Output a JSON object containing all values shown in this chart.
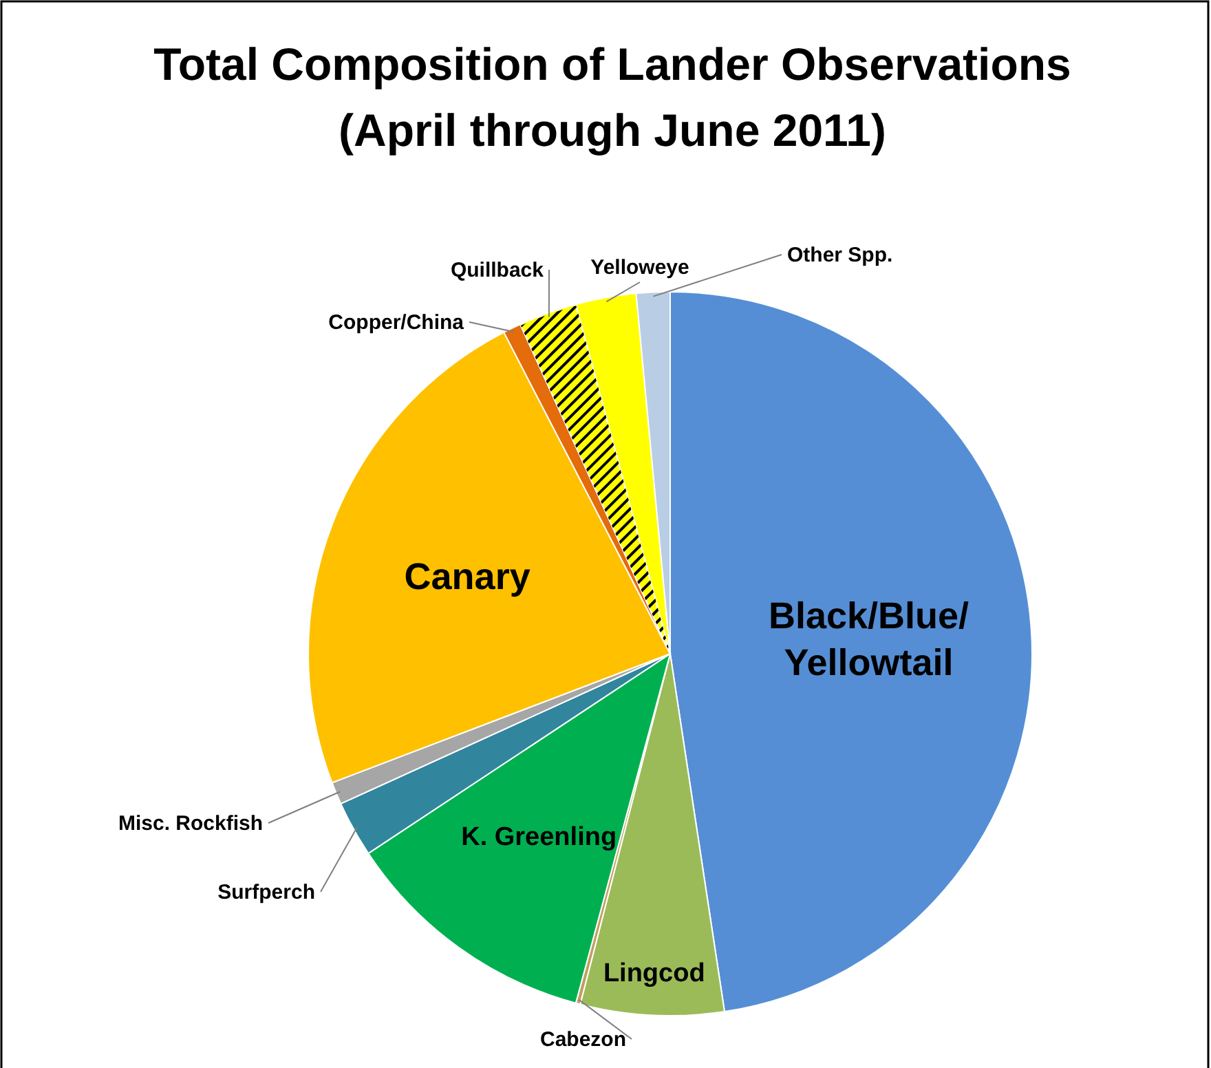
{
  "chart_data": {
    "type": "pie",
    "title": "Total Composition of Lander Observations (April through June 2011)",
    "categories": [
      "Black/Blue/Yellowtail",
      "Lingcod",
      "Cabezon",
      "K. Greenling",
      "Surfperch",
      "Misc. Rockfish",
      "Canary",
      "Copper/China",
      "Quillback",
      "Yelloweye",
      "Other Spp."
    ],
    "values": [
      47.6,
      6.4,
      0.2,
      11.5,
      2.5,
      1,
      23.2,
      0.8,
      2.6,
      2.7,
      1.5
    ],
    "colors": [
      "#558ed5",
      "#9bbb59",
      "#c0a060",
      "#00b050",
      "#31859c",
      "#a6a6a6",
      "#ffc000",
      "#e46c0a",
      "#ffff00",
      "#ffff00",
      "#b9cde5"
    ]
  }
}
